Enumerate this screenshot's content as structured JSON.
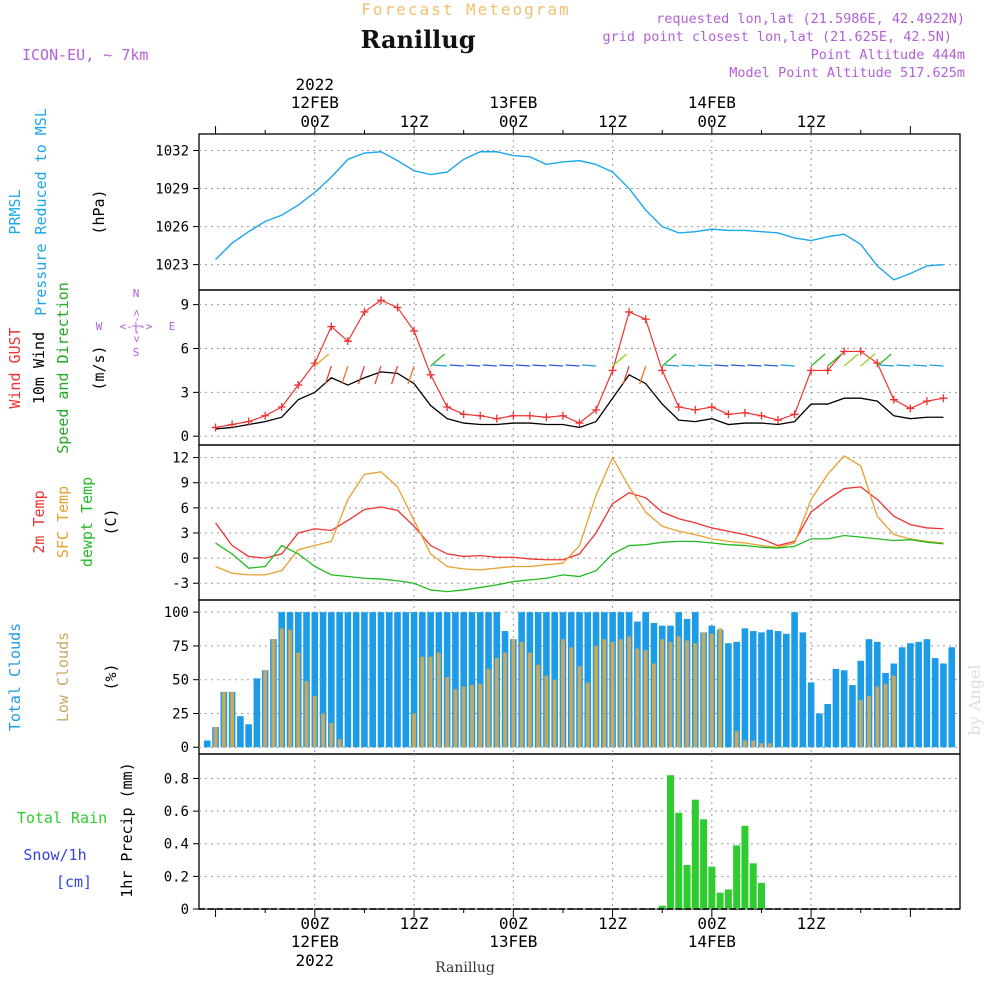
{
  "header": {
    "top_title": "Forecast Meteogram",
    "location": "Ranillug",
    "model": "ICON-EU, ~ 7km",
    "info_lines": [
      "requested lon,lat (21.5986E, 42.4922N)",
      "grid point closest lon,lat (21.625E, 42.5N)",
      "Point Altitude 444m",
      "Model Point Altitude 517.625m"
    ],
    "footer_location": "Ranillug",
    "watermark": "by Angel"
  },
  "colors": {
    "pressure": "#1aa7ec",
    "gust": "#ee3333",
    "wind10m": "#000000",
    "t2m": "#ee3333",
    "sfc": "#e8a030",
    "dewpt": "#22bb22",
    "total_clouds": "#1c9be6",
    "low_clouds": "#c8a860",
    "rain": "#2ecc2e",
    "snow": "#3344dd",
    "meta": "#b45fd6",
    "title_orange": "#f0c070"
  },
  "chart_data": [
    {
      "type": "line",
      "name": "pressure",
      "ylabels": [
        "PRMSL",
        "Pressure Reduced to MSL",
        "(hPa)"
      ],
      "x_hours": [
        -12,
        -10,
        -8,
        -6,
        -4,
        -2,
        0,
        2,
        4,
        6,
        8,
        10,
        12,
        14,
        16,
        18,
        20,
        22,
        24,
        26,
        28,
        30,
        32,
        34,
        36,
        38,
        40,
        42,
        44,
        46,
        48,
        50,
        52,
        54,
        56,
        58,
        60,
        62,
        64,
        66,
        68,
        70,
        72,
        74,
        76
      ],
      "series": [
        {
          "name": "PRMSL",
          "values": [
            1023.4,
            1024.7,
            1025.6,
            1026.4,
            1026.9,
            1027.7,
            1028.7,
            1029.9,
            1031.3,
            1031.8,
            1031.9,
            1031.2,
            1030.4,
            1030.1,
            1030.3,
            1031.3,
            1031.9,
            1031.9,
            1031.6,
            1031.5,
            1030.9,
            1031.1,
            1031.2,
            1030.9,
            1030.3,
            1029.0,
            1027.3,
            1026.0,
            1025.5,
            1025.6,
            1025.8,
            1025.7,
            1025.7,
            1025.6,
            1025.5,
            1025.1,
            1024.9,
            1025.2,
            1025.4,
            1024.6,
            1022.9,
            1021.8,
            1022.3,
            1022.9,
            1023.0
          ]
        }
      ],
      "yticks": [
        1023,
        1026,
        1029,
        1032
      ],
      "ylim": [
        1021,
        1033.3
      ]
    },
    {
      "type": "line",
      "name": "wind",
      "ylabels": [
        "Wind GUST",
        "10m Wind",
        "Speed and Direction",
        "(m/s)"
      ],
      "compass": {
        "n": "N",
        "s": "S",
        "w": "W",
        "e": "E",
        "arrow": "<-|->"
      },
      "x_hours": [
        -12,
        -10,
        -8,
        -6,
        -4,
        -2,
        0,
        2,
        4,
        6,
        8,
        10,
        12,
        14,
        16,
        18,
        20,
        22,
        24,
        26,
        28,
        30,
        32,
        34,
        36,
        38,
        40,
        42,
        44,
        46,
        48,
        50,
        52,
        54,
        56,
        58,
        60,
        62,
        64,
        66,
        68,
        70,
        72,
        74,
        76
      ],
      "series": [
        {
          "name": "Wind GUST",
          "values": [
            0.6,
            0.8,
            1.0,
            1.4,
            2.0,
            3.5,
            5.0,
            7.5,
            6.5,
            8.5,
            9.3,
            8.8,
            7.2,
            4.2,
            2.0,
            1.5,
            1.4,
            1.2,
            1.4,
            1.4,
            1.3,
            1.4,
            0.9,
            1.8,
            4.5,
            8.5,
            8.0,
            4.5,
            2.0,
            1.8,
            2.0,
            1.5,
            1.6,
            1.4,
            1.1,
            1.5,
            4.5,
            4.5,
            5.8,
            5.8,
            5.0,
            2.5,
            1.9,
            2.4,
            2.6
          ]
        },
        {
          "name": "10m Wind",
          "values": [
            0.5,
            0.6,
            0.8,
            1.0,
            1.3,
            2.5,
            3.0,
            4.0,
            3.5,
            4.0,
            4.4,
            4.3,
            3.6,
            2.1,
            1.2,
            0.9,
            0.8,
            0.8,
            0.9,
            0.9,
            0.8,
            0.8,
            0.6,
            1.0,
            2.6,
            4.2,
            3.6,
            2.2,
            1.1,
            1.0,
            1.2,
            0.8,
            0.9,
            0.9,
            0.8,
            1.0,
            2.2,
            2.2,
            2.6,
            2.6,
            2.4,
            1.4,
            1.2,
            1.3,
            1.3
          ]
        }
      ],
      "yticks": [
        0,
        3,
        6,
        9
      ],
      "ylim": [
        -0.6,
        10.0
      ]
    },
    {
      "type": "line",
      "name": "temperature",
      "ylabels": [
        "2m Temp",
        "SFC Temp",
        "dewpt Temp",
        "(C)"
      ],
      "x_hours": [
        -12,
        -10,
        -8,
        -6,
        -4,
        -2,
        0,
        2,
        4,
        6,
        8,
        10,
        12,
        14,
        16,
        18,
        20,
        22,
        24,
        26,
        28,
        30,
        32,
        34,
        36,
        38,
        40,
        42,
        44,
        46,
        48,
        50,
        52,
        54,
        56,
        58,
        60,
        62,
        64,
        66,
        68,
        70,
        72,
        74,
        76
      ],
      "series": [
        {
          "name": "2m Temp",
          "values": [
            4.2,
            1.5,
            0.2,
            0.0,
            0.5,
            3.0,
            3.5,
            3.3,
            4.5,
            5.8,
            6.1,
            5.7,
            3.8,
            1.5,
            0.5,
            0.2,
            0.3,
            0.1,
            0.1,
            -0.1,
            -0.2,
            -0.2,
            0.5,
            3.0,
            6.5,
            7.8,
            7.2,
            5.5,
            4.7,
            4.2,
            3.6,
            3.2,
            2.8,
            2.3,
            1.5,
            2.0,
            5.5,
            7.0,
            8.3,
            8.5,
            7.0,
            5.0,
            4.0,
            3.6,
            3.5
          ]
        },
        {
          "name": "SFC Temp",
          "values": [
            -1.0,
            -1.8,
            -2.0,
            -2.0,
            -1.5,
            1.0,
            1.5,
            2.0,
            7.0,
            10.0,
            10.3,
            8.5,
            4.5,
            0.5,
            -1.0,
            -1.3,
            -1.4,
            -1.2,
            -1.0,
            -1.0,
            -0.8,
            -0.6,
            1.5,
            7.5,
            12.0,
            8.5,
            5.5,
            3.8,
            3.2,
            2.8,
            2.3,
            2.0,
            1.8,
            1.5,
            1.3,
            1.8,
            7.0,
            10.0,
            12.2,
            11.0,
            5.0,
            2.8,
            2.3,
            2.0,
            1.8
          ]
        },
        {
          "name": "dewpt Temp",
          "values": [
            1.8,
            0.5,
            -1.2,
            -1.0,
            1.5,
            0.5,
            -1.0,
            -2.0,
            -2.2,
            -2.4,
            -2.5,
            -2.7,
            -3.0,
            -3.8,
            -4.0,
            -3.8,
            -3.5,
            -3.2,
            -2.8,
            -2.6,
            -2.4,
            -2.0,
            -2.2,
            -1.5,
            0.5,
            1.5,
            1.6,
            1.9,
            2.0,
            2.0,
            1.8,
            1.6,
            1.5,
            1.3,
            1.2,
            1.4,
            2.3,
            2.3,
            2.7,
            2.5,
            2.3,
            2.1,
            2.2,
            1.9,
            1.7
          ]
        }
      ],
      "yticks": [
        -3,
        0,
        3,
        6,
        9,
        12
      ],
      "ylim": [
        -5.0,
        13.5
      ]
    },
    {
      "type": "bar",
      "name": "clouds",
      "ylabels": [
        "Total Clouds",
        "Low Clouds",
        "(%)"
      ],
      "x_hours": [
        -13,
        -12,
        -11,
        -10,
        -9,
        -8,
        -7,
        -6,
        -5,
        -4,
        -3,
        -2,
        -1,
        0,
        1,
        2,
        3,
        4,
        5,
        6,
        7,
        8,
        9,
        10,
        11,
        12,
        13,
        14,
        15,
        16,
        17,
        18,
        19,
        20,
        21,
        22,
        23,
        24,
        25,
        26,
        27,
        28,
        29,
        30,
        31,
        32,
        33,
        34,
        35,
        36,
        37,
        38,
        39,
        40,
        41,
        42,
        43,
        44,
        45,
        46,
        47,
        48,
        49,
        50,
        51,
        52,
        53,
        54,
        55,
        56,
        57,
        58,
        59,
        60,
        61,
        62,
        63,
        64,
        65,
        66,
        67,
        68,
        69,
        70,
        71,
        72,
        73,
        74,
        75,
        76,
        77
      ],
      "series": [
        {
          "name": "Total Clouds",
          "values": [
            5,
            15,
            41,
            41,
            23,
            17,
            51,
            57,
            80,
            100,
            100,
            100,
            100,
            100,
            100,
            100,
            100,
            100,
            100,
            100,
            100,
            100,
            100,
            100,
            100,
            100,
            100,
            100,
            100,
            100,
            100,
            100,
            100,
            100,
            100,
            100,
            86,
            80,
            100,
            100,
            100,
            100,
            100,
            100,
            100,
            100,
            100,
            100,
            100,
            100,
            100,
            100,
            93,
            100,
            92,
            90,
            90,
            100,
            95,
            100,
            85,
            90,
            87,
            77,
            78,
            88,
            86,
            85,
            87,
            86,
            84,
            100,
            85,
            48,
            25,
            32,
            58,
            57,
            46,
            64,
            80,
            78,
            55,
            62,
            74,
            77,
            78,
            80,
            66,
            62,
            74
          ]
        },
        {
          "name": "Low Clouds",
          "values": [
            0,
            15,
            41,
            41,
            0,
            0,
            0,
            57,
            80,
            88,
            87,
            70,
            49,
            38,
            25,
            18,
            6,
            0,
            0,
            0,
            0,
            0,
            0,
            0,
            0,
            25,
            67,
            67,
            70,
            52,
            43,
            45,
            46,
            47,
            58,
            66,
            70,
            80,
            78,
            70,
            61,
            53,
            50,
            80,
            74,
            60,
            48,
            75,
            80,
            78,
            80,
            82,
            73,
            72,
            62,
            80,
            78,
            82,
            79,
            77,
            85,
            84,
            88,
            0,
            12,
            5,
            5,
            3,
            3,
            0,
            0,
            0,
            0,
            0,
            0,
            0,
            0,
            0,
            0,
            35,
            38,
            45,
            47,
            53,
            0,
            0,
            0,
            0,
            0,
            0,
            0
          ]
        }
      ],
      "yticks": [
        0,
        25,
        50,
        75,
        100
      ],
      "ylim": [
        -5,
        109
      ]
    },
    {
      "type": "bar",
      "name": "precip",
      "ylabels": [
        "1hr Precip (mm)"
      ],
      "left_labels": {
        "rain": "Total  Rain",
        "snow": "Snow/1h",
        "unit": "[cm]"
      },
      "x_hours": [
        42,
        43,
        44,
        45,
        46,
        47,
        48,
        49,
        50,
        51,
        52,
        53,
        54,
        55,
        56
      ],
      "series": [
        {
          "name": "Total Rain",
          "values": [
            0.02,
            0.82,
            0.59,
            0.27,
            0.67,
            0.55,
            0.26,
            0.1,
            0.12,
            0.39,
            0.51,
            0.28,
            0.16,
            0.0,
            0.0
          ]
        }
      ],
      "yticks": [
        0,
        0.2,
        0.4,
        0.6,
        0.8
      ],
      "yticklabels": [
        "0",
        "0.2",
        "0.4",
        "0.6",
        "0.8"
      ],
      "ylim": [
        0,
        0.95
      ]
    }
  ],
  "xaxis": {
    "top_labels": [
      {
        "h": 0,
        "lines": [
          "2022",
          "12FEB",
          "00Z"
        ]
      },
      {
        "h": 12,
        "lines": [
          "",
          "",
          "12Z"
        ]
      },
      {
        "h": 24,
        "lines": [
          "",
          "13FEB",
          "00Z"
        ]
      },
      {
        "h": 36,
        "lines": [
          "",
          "",
          "12Z"
        ]
      },
      {
        "h": 48,
        "lines": [
          "",
          "14FEB",
          "00Z"
        ]
      },
      {
        "h": 60,
        "lines": [
          "",
          "",
          "12Z"
        ]
      }
    ],
    "bottom_labels": [
      {
        "h": 0,
        "lines": [
          "00Z",
          "12FEB",
          "2022"
        ]
      },
      {
        "h": 12,
        "lines": [
          "12Z",
          "",
          ""
        ]
      },
      {
        "h": 24,
        "lines": [
          "00Z",
          "13FEB",
          ""
        ]
      },
      {
        "h": 36,
        "lines": [
          "12Z",
          "",
          ""
        ]
      },
      {
        "h": 48,
        "lines": [
          "00Z",
          "14FEB",
          ""
        ]
      },
      {
        "h": 60,
        "lines": [
          "12Z",
          "",
          ""
        ]
      }
    ]
  }
}
